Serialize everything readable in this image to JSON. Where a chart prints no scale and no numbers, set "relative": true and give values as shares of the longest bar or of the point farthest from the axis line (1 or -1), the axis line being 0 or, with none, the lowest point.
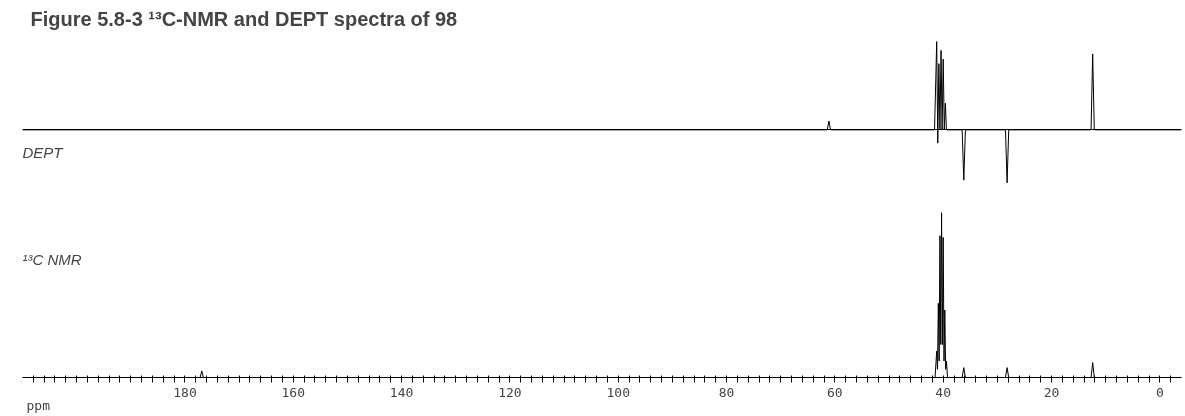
{
  "chart_data": [
    {
      "type": "line",
      "title": "Figure 5.8-3 ¹³C-NMR and DEPT spectra of 98",
      "relative": true,
      "color": "#000000",
      "xlim": [
        210,
        -4
      ],
      "tick_labels": false,
      "grid": false,
      "marker": "none",
      "line_style": "solid",
      "annotations": [
        "DEPT"
      ],
      "x": [
        210,
        61.4,
        61.1,
        60.8,
        41.6,
        41.2,
        41.0,
        40.8,
        40.6,
        40.4,
        40.2,
        40.0,
        39.8,
        39.6,
        39.4,
        36.5,
        36.2,
        35.9,
        28.5,
        28.2,
        27.9,
        12.7,
        12.4,
        12.1,
        -4
      ],
      "values": [
        0,
        0,
        0.1,
        0,
        0,
        1.0,
        -0.15,
        0.75,
        0,
        0.9,
        0,
        0.8,
        0,
        0.3,
        0,
        0,
        -0.57,
        0,
        0,
        -0.6,
        0,
        0,
        0.86,
        0,
        0
      ]
    },
    {
      "type": "line",
      "relative": true,
      "color": "#000000",
      "xlim": [
        210,
        -4
      ],
      "xlabel": "ppm",
      "tick_labels": "x",
      "grid": false,
      "marker": "none",
      "line_style": "solid",
      "annotations": [
        "¹³C NMR"
      ],
      "xticks": [
        {
          "value": 208,
          "label": null
        },
        {
          "value": 206,
          "label": null
        },
        {
          "value": 204,
          "label": null
        },
        {
          "value": 202,
          "label": null
        },
        {
          "value": 200,
          "label": null
        },
        {
          "value": 198,
          "label": null
        },
        {
          "value": 196,
          "label": null
        },
        {
          "value": 194,
          "label": null
        },
        {
          "value": 192,
          "label": null
        },
        {
          "value": 190,
          "label": null
        },
        {
          "value": 188,
          "label": null
        },
        {
          "value": 186,
          "label": null
        },
        {
          "value": 184,
          "label": null
        },
        {
          "value": 182,
          "label": null
        },
        180,
        {
          "value": 178,
          "label": null
        },
        {
          "value": 176,
          "label": null
        },
        {
          "value": 174,
          "label": null
        },
        {
          "value": 172,
          "label": null
        },
        {
          "value": 170,
          "label": null
        },
        {
          "value": 168,
          "label": null
        },
        {
          "value": 166,
          "label": null
        },
        {
          "value": 164,
          "label": null
        },
        {
          "value": 162,
          "label": null
        },
        160,
        {
          "value": 158,
          "label": null
        },
        {
          "value": 156,
          "label": null
        },
        {
          "value": 154,
          "label": null
        },
        {
          "value": 152,
          "label": null
        },
        {
          "value": 150,
          "label": null
        },
        {
          "value": 148,
          "label": null
        },
        {
          "value": 146,
          "label": null
        },
        {
          "value": 144,
          "label": null
        },
        {
          "value": 142,
          "label": null
        },
        140,
        {
          "value": 138,
          "label": null
        },
        {
          "value": 136,
          "label": null
        },
        {
          "value": 134,
          "label": null
        },
        {
          "value": 132,
          "label": null
        },
        {
          "value": 130,
          "label": null
        },
        {
          "value": 128,
          "label": null
        },
        {
          "value": 126,
          "label": null
        },
        {
          "value": 124,
          "label": null
        },
        {
          "value": 122,
          "label": null
        },
        120,
        {
          "value": 118,
          "label": null
        },
        {
          "value": 116,
          "label": null
        },
        {
          "value": 114,
          "label": null
        },
        {
          "value": 112,
          "label": null
        },
        {
          "value": 110,
          "label": null
        },
        {
          "value": 108,
          "label": null
        },
        {
          "value": 106,
          "label": null
        },
        {
          "value": 104,
          "label": null
        },
        {
          "value": 102,
          "label": null
        },
        100,
        {
          "value": 98,
          "label": null
        },
        {
          "value": 96,
          "label": null
        },
        {
          "value": 94,
          "label": null
        },
        {
          "value": 92,
          "label": null
        },
        {
          "value": 90,
          "label": null
        },
        {
          "value": 88,
          "label": null
        },
        {
          "value": 86,
          "label": null
        },
        {
          "value": 84,
          "label": null
        },
        {
          "value": 82,
          "label": null
        },
        80,
        {
          "value": 78,
          "label": null
        },
        {
          "value": 76,
          "label": null
        },
        {
          "value": 74,
          "label": null
        },
        {
          "value": 72,
          "label": null
        },
        {
          "value": 70,
          "label": null
        },
        {
          "value": 68,
          "label": null
        },
        {
          "value": 66,
          "label": null
        },
        {
          "value": 64,
          "label": null
        },
        {
          "value": 62,
          "label": null
        },
        60,
        {
          "value": 58,
          "label": null
        },
        {
          "value": 56,
          "label": null
        },
        {
          "value": 54,
          "label": null
        },
        {
          "value": 52,
          "label": null
        },
        {
          "value": 50,
          "label": null
        },
        {
          "value": 48,
          "label": null
        },
        {
          "value": 46,
          "label": null
        },
        {
          "value": 44,
          "label": null
        },
        {
          "value": 42,
          "label": null
        },
        40,
        {
          "value": 38,
          "label": null
        },
        {
          "value": 36,
          "label": null
        },
        {
          "value": 34,
          "label": null
        },
        {
          "value": 32,
          "label": null
        },
        {
          "value": 30,
          "label": null
        },
        {
          "value": 28,
          "label": null
        },
        {
          "value": 26,
          "label": null
        },
        {
          "value": 24,
          "label": null
        },
        {
          "value": 22,
          "label": null
        },
        20,
        {
          "value": 18,
          "label": null
        },
        {
          "value": 16,
          "label": null
        },
        {
          "value": 14,
          "label": null
        },
        {
          "value": 12,
          "label": null
        },
        {
          "value": 10,
          "label": null
        },
        {
          "value": 8,
          "label": null
        },
        {
          "value": 6,
          "label": null
        },
        {
          "value": 4,
          "label": null
        },
        {
          "value": 2,
          "label": null
        },
        0,
        {
          "value": -2,
          "label": null
        }
      ],
      "x": [
        210,
        177.2,
        176.9,
        176.6,
        41.5,
        41.2,
        41.05,
        40.9,
        40.75,
        40.6,
        40.45,
        40.3,
        40.15,
        40.0,
        39.85,
        39.7,
        39.55,
        39.4,
        39.2,
        36.5,
        36.2,
        35.9,
        28.5,
        28.2,
        27.9,
        12.7,
        12.4,
        12.1,
        -4
      ],
      "values": [
        0,
        0,
        0.04,
        0,
        0,
        0.16,
        0.05,
        0.45,
        0.1,
        0.86,
        0.2,
        1.0,
        0.2,
        0.85,
        0.1,
        0.41,
        0.05,
        0.1,
        0,
        0,
        0.06,
        0,
        0,
        0.06,
        0,
        0,
        0.09,
        0,
        0
      ]
    }
  ]
}
